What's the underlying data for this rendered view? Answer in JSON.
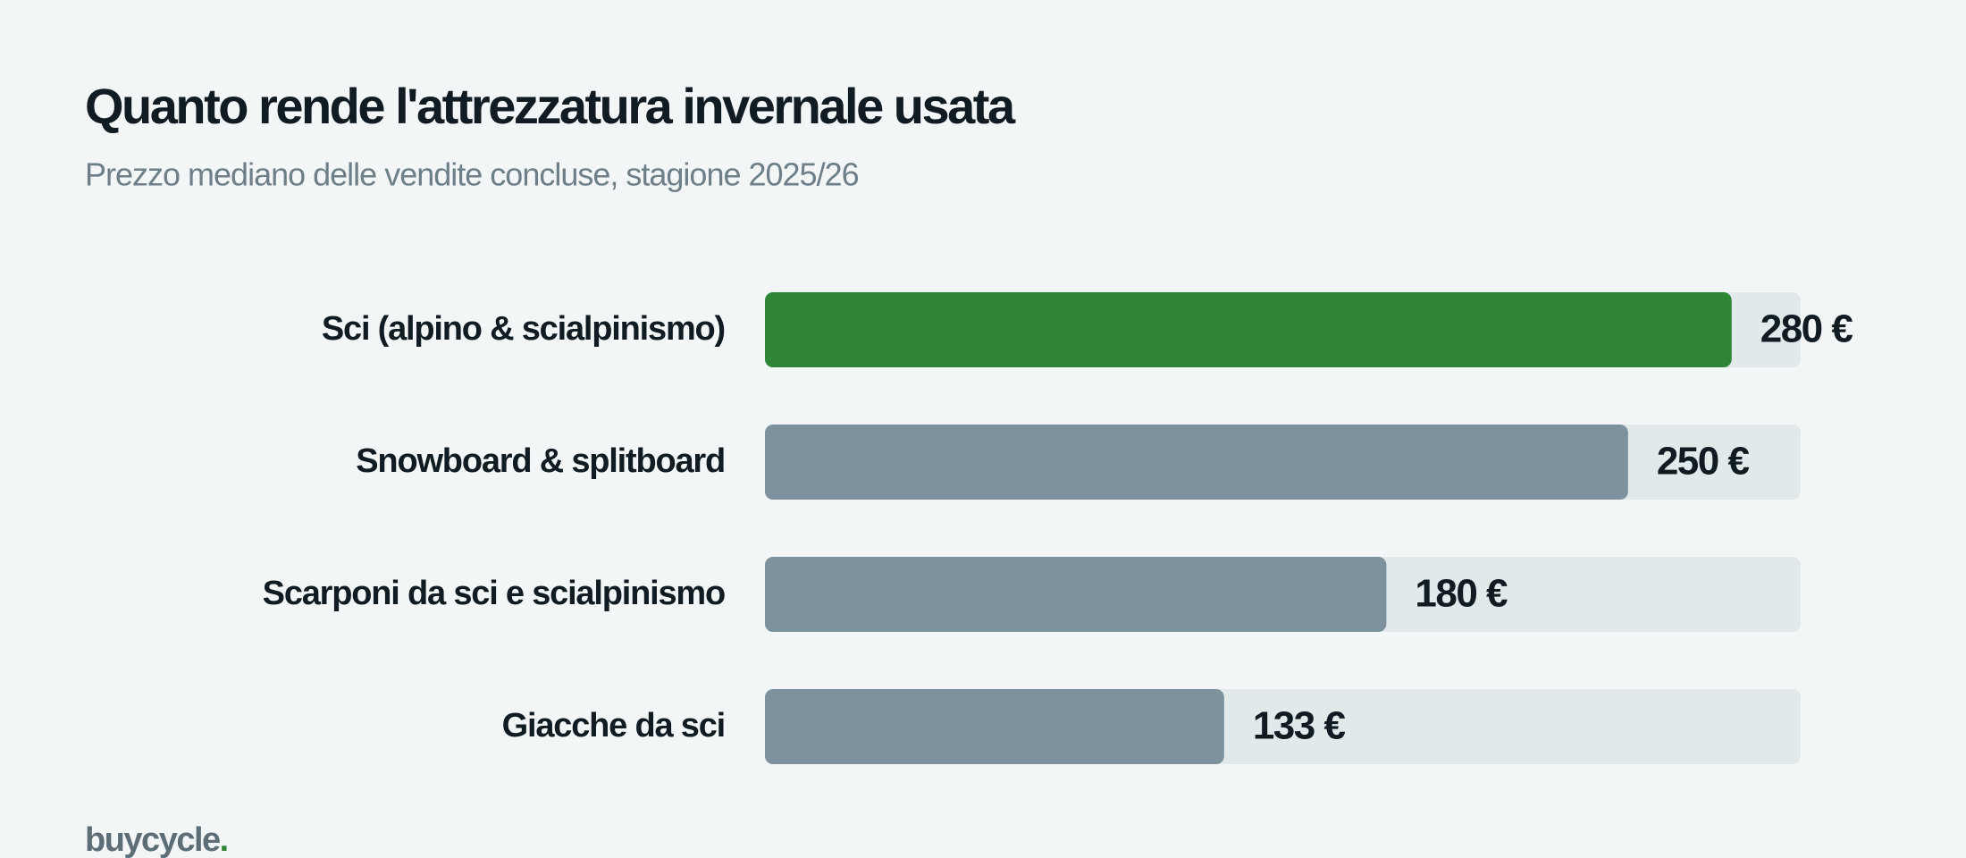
{
  "chart_data": {
    "type": "bar",
    "orientation": "horizontal",
    "title": "Quanto rende l'attrezzatura invernale usata",
    "subtitle": "Prezzo mediano delle vendite concluse, stagione 2025/26",
    "categories": [
      "Sci (alpino & scialpinismo)",
      "Snowboard & splitboard",
      "Scarponi da sci e scialpinismo",
      "Giacche da sci"
    ],
    "values": [
      280,
      250,
      180,
      133
    ],
    "value_labels": [
      "280 €",
      "250 €",
      "180 €",
      "133 €"
    ],
    "colors": [
      "#2e8636",
      "#7d929c",
      "#7d929c",
      "#7d929c"
    ],
    "track_color": "#e1e9eb",
    "xlim": [
      0,
      300
    ],
    "grid": false
  },
  "logo": {
    "text": "buycycle",
    "dot": ".",
    "dot_color": "#2e8636"
  }
}
